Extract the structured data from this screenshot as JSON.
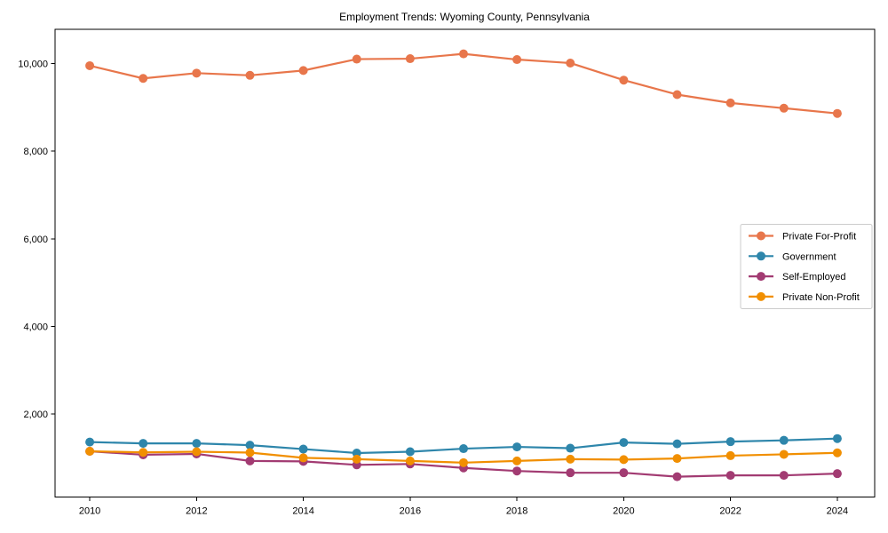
{
  "chart_data": {
    "type": "line",
    "title": "Employment Trends: Wyoming County, Pennsylvania",
    "x": [
      2010,
      2011,
      2012,
      2013,
      2014,
      2015,
      2016,
      2017,
      2018,
      2019,
      2020,
      2021,
      2022,
      2023,
      2024
    ],
    "series": [
      {
        "name": "Private For-Profit",
        "color": "#e8764b",
        "values": [
          9950,
          9660,
          9780,
          9730,
          9840,
          10100,
          10110,
          10220,
          10090,
          10010,
          9620,
          9290,
          9100,
          8980,
          8860
        ]
      },
      {
        "name": "Government",
        "color": "#2e86ab",
        "values": [
          1360,
          1330,
          1330,
          1290,
          1200,
          1110,
          1140,
          1210,
          1250,
          1220,
          1350,
          1320,
          1370,
          1400,
          1440
        ]
      },
      {
        "name": "Self-Employed",
        "color": "#a23b72",
        "values": [
          1150,
          1070,
          1090,
          930,
          920,
          840,
          860,
          770,
          700,
          660,
          660,
          570,
          600,
          600,
          640
        ]
      },
      {
        "name": "Private Non-Profit",
        "color": "#f18f01",
        "values": [
          1150,
          1125,
          1140,
          1120,
          1000,
          970,
          930,
          890,
          930,
          970,
          960,
          985,
          1050,
          1080,
          1115
        ]
      }
    ],
    "xlabel": "",
    "ylabel": "",
    "x_ticks": [
      2010,
      2012,
      2014,
      2016,
      2018,
      2020,
      2022,
      2024
    ],
    "y_ticks": [
      2000,
      4000,
      6000,
      8000,
      10000
    ],
    "y_tick_labels": [
      "2,000",
      "4,000",
      "6,000",
      "8,000",
      "10,000"
    ],
    "xlim": [
      2009.35,
      2024.7
    ],
    "ylim": [
      106,
      10780
    ],
    "grid": false,
    "legend_position": "center right",
    "legend_border_color": "#cccccc",
    "axis_color": "#000000",
    "background_color": "#ffffff"
  }
}
